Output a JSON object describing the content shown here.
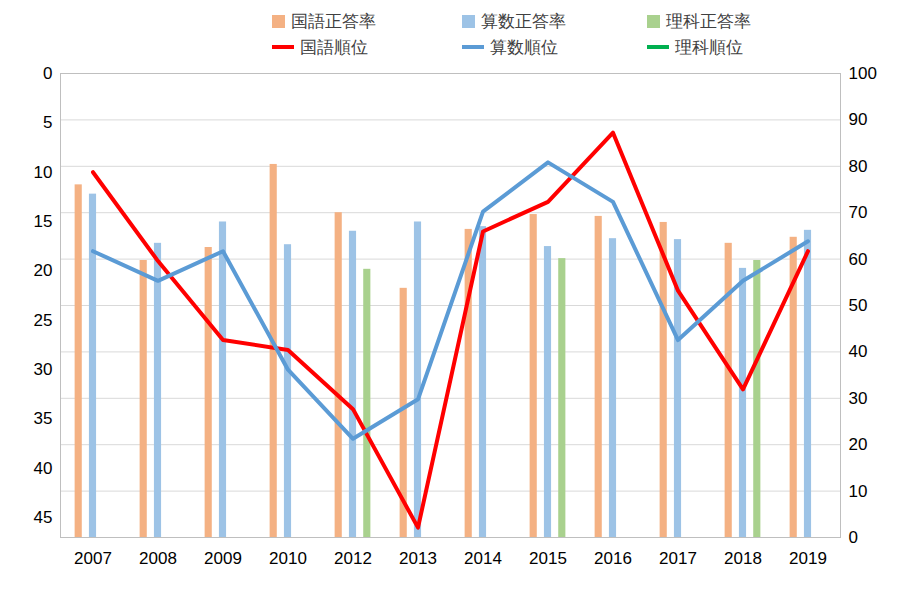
{
  "chart_data": {
    "type": "bar",
    "categories": [
      "2007",
      "2008",
      "2009",
      "2010",
      "2012",
      "2013",
      "2014",
      "2015",
      "2016",
      "2017",
      "2018",
      "2019"
    ],
    "series": [
      {
        "name": "国語正答率",
        "type": "bar",
        "axis": "y2",
        "color": "#F4B183",
        "values": [
          76,
          59.7,
          62.5,
          80.4,
          70,
          53.7,
          66.4,
          69.6,
          69.2,
          67.9,
          63.4,
          64.7
        ]
      },
      {
        "name": "算数正答率",
        "type": "bar",
        "axis": "y2",
        "color": "#9DC3E6",
        "values": [
          74,
          63.4,
          68,
          63.1,
          66,
          68,
          67,
          62.7,
          64.4,
          64.2,
          58,
          66.2
        ]
      },
      {
        "name": "理科正答率",
        "type": "bar",
        "axis": "y2",
        "color": "#A9D18E",
        "values": [
          null,
          null,
          null,
          null,
          57.8,
          null,
          null,
          60.1,
          null,
          null,
          59.7,
          null
        ]
      },
      {
        "name": "国語順位",
        "type": "line",
        "color": "#FF0000",
        "values": [
          10,
          19,
          27,
          28,
          34,
          46,
          16,
          13,
          6,
          22,
          32,
          18
        ]
      },
      {
        "name": "算数順位",
        "type": "line",
        "color": "#5B9BD5",
        "values": [
          18,
          21,
          18,
          30,
          37,
          33,
          14,
          9,
          13,
          27,
          21,
          17
        ]
      },
      {
        "name": "理科順位",
        "type": "line",
        "color": "#00B050",
        "values": [
          null,
          null,
          null,
          null,
          null,
          null,
          null,
          null,
          null,
          null,
          null,
          null
        ]
      }
    ],
    "ylim": [
      47,
      0
    ],
    "yticks": [
      0,
      5,
      10,
      15,
      20,
      25,
      30,
      35,
      40,
      45
    ],
    "y2lim": [
      0,
      100
    ],
    "y2ticks": [
      0,
      10,
      20,
      30,
      40,
      50,
      60,
      70,
      80,
      90,
      100
    ],
    "grid": true,
    "legend": "top"
  }
}
